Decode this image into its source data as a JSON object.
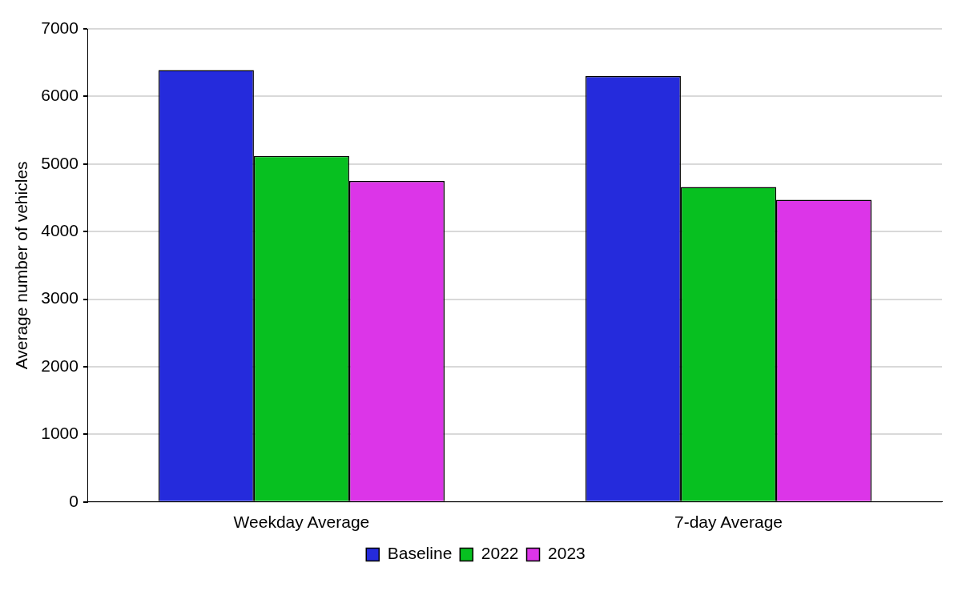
{
  "chart_data": {
    "type": "bar",
    "ylabel": "Average number of vehicles",
    "categories": [
      "Weekday Average",
      "7-day Average"
    ],
    "series": [
      {
        "name": "Baseline",
        "color": "#252bdc",
        "values": [
          6390,
          6300
        ]
      },
      {
        "name": "2022",
        "color": "#07c020",
        "values": [
          5120,
          4660
        ]
      },
      {
        "name": "2023",
        "color": "#dc35e8",
        "values": [
          4750,
          4470
        ]
      }
    ],
    "ylim": [
      0,
      7000
    ],
    "yticks": [
      0,
      1000,
      2000,
      3000,
      4000,
      5000,
      6000,
      7000
    ],
    "grid": "y",
    "legend": "bottom"
  }
}
